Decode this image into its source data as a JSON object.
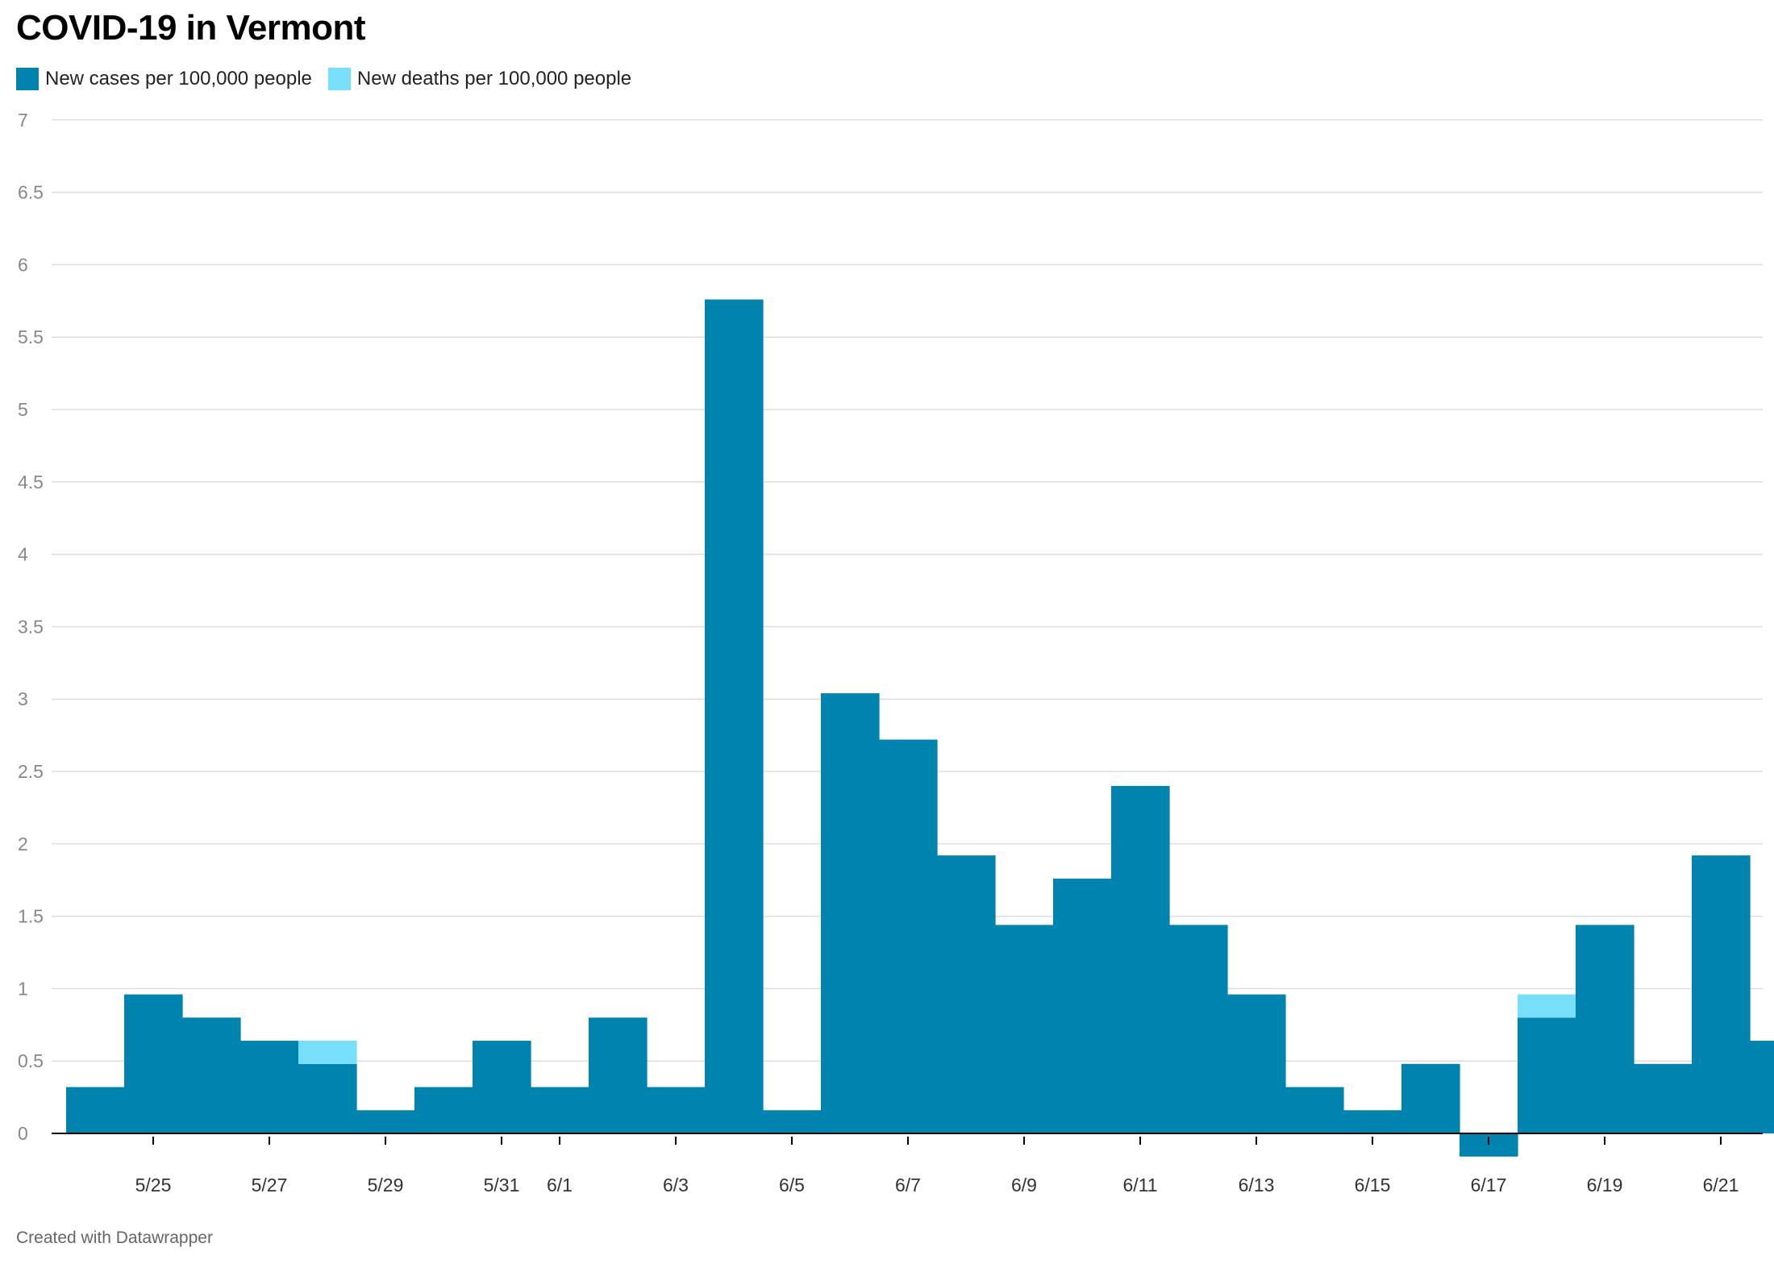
{
  "title": "COVID-19 in Vermont",
  "credit": "Created with Datawrapper",
  "colors": {
    "cases": "#0083ae",
    "deaths": "#78dffb",
    "grid": "#dddddd",
    "axis": "#000000"
  },
  "chart_data": {
    "type": "bar",
    "stacked": true,
    "title": "COVID-19 in Vermont",
    "xlabel": "",
    "ylabel": "",
    "ylim": [
      -0.2,
      7
    ],
    "yticks": [
      "0",
      "0.5",
      "1",
      "1.5",
      "2",
      "2.5",
      "3",
      "3.5",
      "4",
      "4.5",
      "5",
      "5.5",
      "6",
      "6.5",
      "7"
    ],
    "legend_position": "top-left",
    "grid": true,
    "categories": [
      "5/24",
      "5/25",
      "5/26",
      "5/27",
      "5/28",
      "5/29",
      "5/30",
      "5/31",
      "6/1",
      "6/2",
      "6/3",
      "6/4",
      "6/5",
      "6/6",
      "6/7",
      "6/8",
      "6/9",
      "6/10",
      "6/11",
      "6/12",
      "6/13",
      "6/14",
      "6/15",
      "6/16",
      "6/17",
      "6/18",
      "6/19",
      "6/20",
      "6/21",
      "6/22"
    ],
    "tick_labels": [
      {
        "label": "5/25",
        "index": 1
      },
      {
        "label": "5/27",
        "index": 3
      },
      {
        "label": "5/29",
        "index": 5
      },
      {
        "label": "5/31",
        "index": 7
      },
      {
        "label": "6/1",
        "index": 8
      },
      {
        "label": "6/3",
        "index": 10
      },
      {
        "label": "6/5",
        "index": 12
      },
      {
        "label": "6/7",
        "index": 14
      },
      {
        "label": "6/9",
        "index": 16
      },
      {
        "label": "6/11",
        "index": 18
      },
      {
        "label": "6/13",
        "index": 20
      },
      {
        "label": "6/15",
        "index": 22
      },
      {
        "label": "6/17",
        "index": 24
      },
      {
        "label": "6/19",
        "index": 26
      },
      {
        "label": "6/21",
        "index": 28
      }
    ],
    "series": [
      {
        "name": "New cases per 100,000 people",
        "color": "#0083ae",
        "values": [
          0.32,
          0.96,
          0.8,
          0.64,
          0.48,
          0.16,
          0.32,
          0.64,
          0.32,
          0.8,
          0.32,
          5.76,
          0.16,
          3.04,
          2.72,
          1.92,
          1.44,
          1.76,
          2.4,
          1.44,
          0.96,
          0.32,
          0.16,
          0.48,
          -0.16,
          0.8,
          1.44,
          0.48,
          1.92,
          0.64
        ]
      },
      {
        "name": "New deaths per 100,000 people",
        "color": "#78dffb",
        "values": [
          0,
          0,
          0,
          0,
          0.16,
          0,
          0,
          0,
          0,
          0,
          0,
          0,
          0,
          0,
          0,
          0,
          0,
          0,
          0,
          0,
          0,
          0,
          0,
          0,
          0,
          0.16,
          0,
          0,
          0,
          0
        ]
      }
    ]
  }
}
